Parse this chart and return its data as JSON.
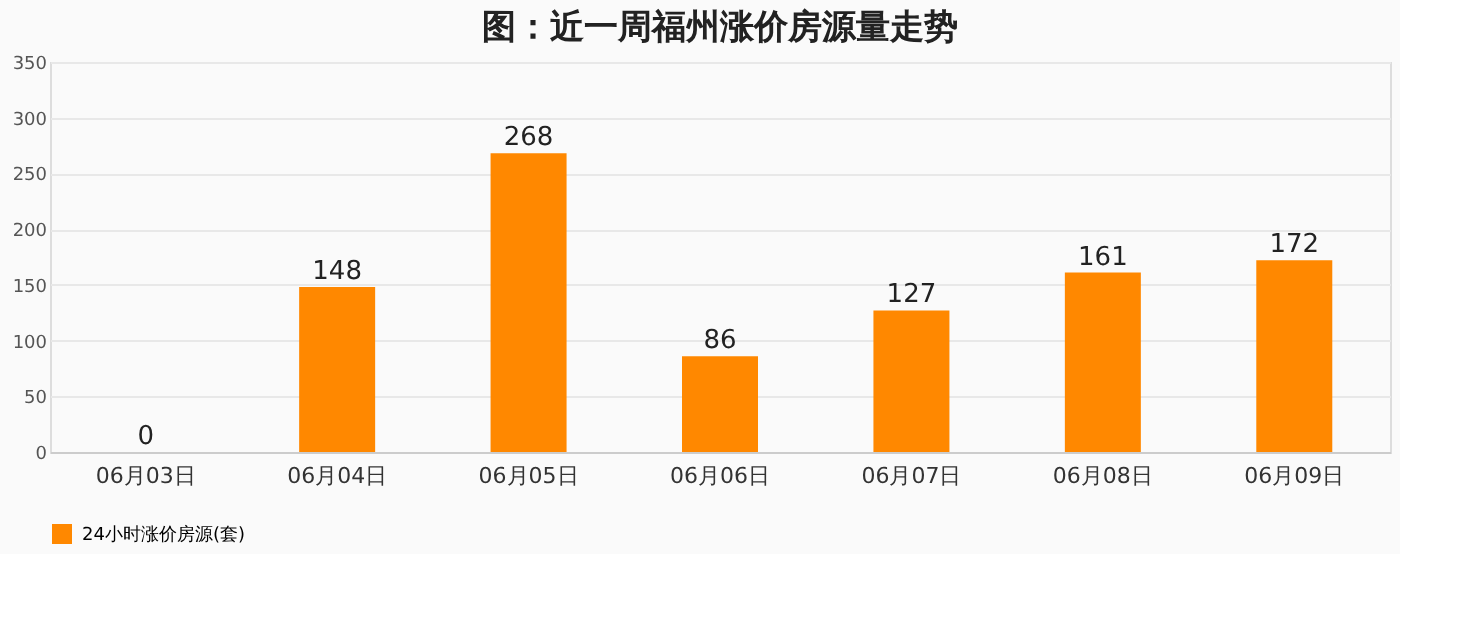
{
  "chart_data": {
    "type": "bar",
    "title": "图：近一周福州涨价房源量走势",
    "categories": [
      "06月03日",
      "06月04日",
      "06月05日",
      "06月06日",
      "06月07日",
      "06月08日",
      "06月09日"
    ],
    "series": [
      {
        "name": "24小时涨价房源(套)",
        "color": "#ff8800",
        "values": [
          0,
          148,
          268,
          86,
          127,
          161,
          172
        ]
      }
    ],
    "ylim": [
      0,
      350
    ],
    "yticks": [
      0,
      50,
      100,
      150,
      200,
      250,
      300,
      350
    ],
    "grid": "y",
    "legend": "bottom",
    "data_labels": true
  }
}
